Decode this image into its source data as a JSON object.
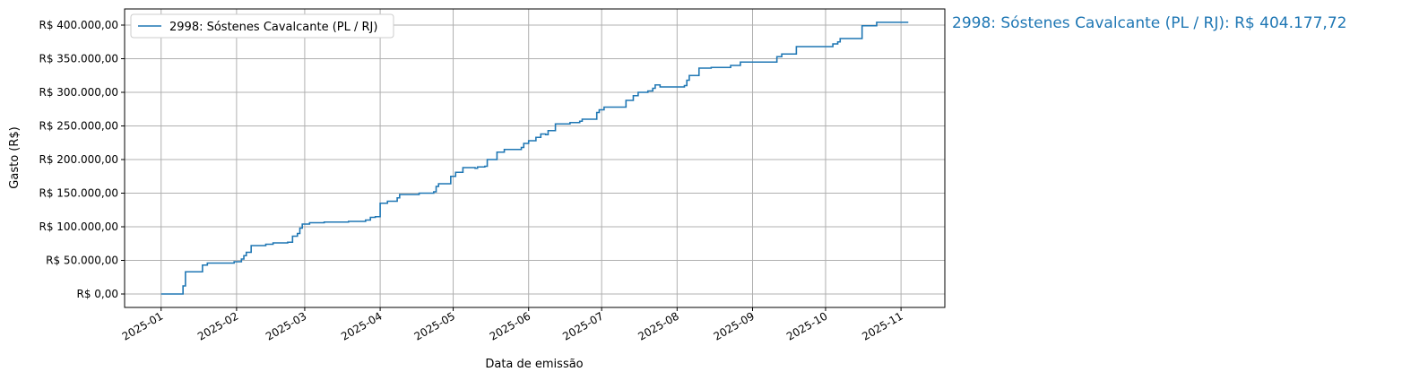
{
  "chart_data": {
    "type": "line",
    "step": true,
    "xlabel": "Data de emissão",
    "ylabel": "Gasto (R$)",
    "x_ticks": [
      "2025-01",
      "2025-02",
      "2025-03",
      "2025-04",
      "2025-05",
      "2025-06",
      "2025-07",
      "2025-08",
      "2025-09",
      "2025-10",
      "2025-11"
    ],
    "y_ticks": [
      0,
      50000,
      100000,
      150000,
      200000,
      250000,
      300000,
      350000,
      400000
    ],
    "y_tick_labels": [
      "R$ 0,00",
      "R$ 50.000,00",
      "R$ 100.000,00",
      "R$ 150.000,00",
      "R$ 200.000,00",
      "R$ 250.000,00",
      "R$ 300.000,00",
      "R$ 350.000,00",
      "R$ 400.000,00"
    ],
    "xlim": [
      "2024-12-17",
      "2025-11-19"
    ],
    "ylim": [
      -20000,
      424000
    ],
    "grid": true,
    "legend_position": "top-left",
    "annotation": "2998: Sóstenes Cavalcante (PL / RJ): R$ 404.177,72",
    "series": [
      {
        "name": "2998: Sóstenes Cavalcante (PL / RJ)",
        "color": "#1f77b4",
        "points": [
          [
            "2025-01-01",
            0
          ],
          [
            "2025-01-10",
            12000
          ],
          [
            "2025-01-11",
            33000
          ],
          [
            "2025-01-18",
            43000
          ],
          [
            "2025-01-20",
            46000
          ],
          [
            "2025-01-31",
            48000
          ],
          [
            "2025-02-03",
            52000
          ],
          [
            "2025-02-04",
            57000
          ],
          [
            "2025-02-05",
            62000
          ],
          [
            "2025-02-07",
            72000
          ],
          [
            "2025-02-13",
            74000
          ],
          [
            "2025-02-16",
            76000
          ],
          [
            "2025-02-22",
            77000
          ],
          [
            "2025-02-24",
            86000
          ],
          [
            "2025-02-26",
            90000
          ],
          [
            "2025-02-27",
            98000
          ],
          [
            "2025-02-28",
            104000
          ],
          [
            "2025-03-03",
            106000
          ],
          [
            "2025-03-09",
            107000
          ],
          [
            "2025-03-19",
            108000
          ],
          [
            "2025-03-26",
            110000
          ],
          [
            "2025-03-28",
            114000
          ],
          [
            "2025-03-30",
            115000
          ],
          [
            "2025-04-01",
            135000
          ],
          [
            "2025-04-04",
            138000
          ],
          [
            "2025-04-08",
            143000
          ],
          [
            "2025-04-09",
            148000
          ],
          [
            "2025-04-17",
            150000
          ],
          [
            "2025-04-23",
            152000
          ],
          [
            "2025-04-24",
            160000
          ],
          [
            "2025-04-25",
            164000
          ],
          [
            "2025-04-30",
            175000
          ],
          [
            "2025-05-02",
            181000
          ],
          [
            "2025-05-05",
            188000
          ],
          [
            "2025-05-10",
            187000
          ],
          [
            "2025-05-11",
            189000
          ],
          [
            "2025-05-14",
            190000
          ],
          [
            "2025-05-15",
            200000
          ],
          [
            "2025-05-19",
            211000
          ],
          [
            "2025-05-22",
            215000
          ],
          [
            "2025-05-29",
            218000
          ],
          [
            "2025-05-30",
            224000
          ],
          [
            "2025-06-01",
            228000
          ],
          [
            "2025-06-04",
            233000
          ],
          [
            "2025-06-06",
            238000
          ],
          [
            "2025-06-08",
            237000
          ],
          [
            "2025-06-09",
            243000
          ],
          [
            "2025-06-12",
            253000
          ],
          [
            "2025-06-18",
            255000
          ],
          [
            "2025-06-22",
            257000
          ],
          [
            "2025-06-23",
            260000
          ],
          [
            "2025-06-29",
            270000
          ],
          [
            "2025-06-30",
            274000
          ],
          [
            "2025-07-02",
            278000
          ],
          [
            "2025-07-11",
            288000
          ],
          [
            "2025-07-14",
            295000
          ],
          [
            "2025-07-16",
            300000
          ],
          [
            "2025-07-20",
            302000
          ],
          [
            "2025-07-22",
            306000
          ],
          [
            "2025-07-23",
            311000
          ],
          [
            "2025-07-25",
            308000
          ],
          [
            "2025-08-04",
            310000
          ],
          [
            "2025-08-05",
            318000
          ],
          [
            "2025-08-06",
            325000
          ],
          [
            "2025-08-10",
            336000
          ],
          [
            "2025-08-15",
            337000
          ],
          [
            "2025-08-23",
            340000
          ],
          [
            "2025-08-27",
            345000
          ],
          [
            "2025-09-11",
            353000
          ],
          [
            "2025-09-13",
            357000
          ],
          [
            "2025-09-19",
            368000
          ],
          [
            "2025-10-04",
            372000
          ],
          [
            "2025-10-06",
            375000
          ],
          [
            "2025-10-07",
            380000
          ],
          [
            "2025-10-16",
            399000
          ],
          [
            "2025-10-22",
            404177.72
          ],
          [
            "2025-11-04",
            404177.72
          ]
        ]
      }
    ]
  }
}
